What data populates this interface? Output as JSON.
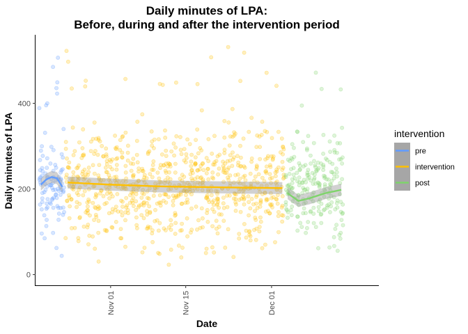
{
  "chart_data": {
    "type": "scatter",
    "title_lines": [
      "Daily minutes of LPA:",
      "Before, during and after the intervention period"
    ],
    "xlabel": "Date",
    "ylabel": "Daily minutes of LPA",
    "xlim": [
      "2019-10-18",
      "2019-12-21"
    ],
    "ylim": [
      -25,
      560
    ],
    "x_ticks": [
      {
        "date": "2019-11-01",
        "label": "Nov 01"
      },
      {
        "date": "2019-11-15",
        "label": "Nov 15"
      },
      {
        "date": "2019-12-01",
        "label": "Dec 01"
      }
    ],
    "y_ticks": [
      0,
      200,
      400
    ],
    "grid": false,
    "legend": {
      "title": "intervention",
      "placement": "right",
      "entries": [
        "pre",
        "intervention",
        "post"
      ]
    },
    "series": [
      {
        "name": "pre",
        "color": "#619CFF",
        "date_range": [
          "2019-10-19",
          "2019-10-23"
        ],
        "point_spread": [
          10,
          520
        ],
        "typical_range": [
          100,
          330
        ],
        "smooth": [
          {
            "x": "2019-10-19",
            "y": 210
          },
          {
            "x": "2019-10-20",
            "y": 222
          },
          {
            "x": "2019-10-21",
            "y": 228
          },
          {
            "x": "2019-10-22",
            "y": 225
          },
          {
            "x": "2019-10-23",
            "y": 205
          }
        ]
      },
      {
        "name": "intervention",
        "color": "#FFC000",
        "date_range": [
          "2019-10-24",
          "2019-12-03"
        ],
        "point_spread": [
          10,
          545
        ],
        "typical_range": [
          80,
          340
        ],
        "smooth": [
          {
            "x": "2019-10-24",
            "y": 215
          },
          {
            "x": "2019-11-01",
            "y": 210
          },
          {
            "x": "2019-11-10",
            "y": 206
          },
          {
            "x": "2019-11-20",
            "y": 204
          },
          {
            "x": "2019-12-03",
            "y": 202
          }
        ]
      },
      {
        "name": "post",
        "color": "#7FD46B",
        "date_range": [
          "2019-12-04",
          "2019-12-14"
        ],
        "point_spread": [
          30,
          520
        ],
        "typical_range": [
          80,
          330
        ],
        "smooth": [
          {
            "x": "2019-12-04",
            "y": 190
          },
          {
            "x": "2019-12-06",
            "y": 172
          },
          {
            "x": "2019-12-08",
            "y": 178
          },
          {
            "x": "2019-12-11",
            "y": 190
          },
          {
            "x": "2019-12-14",
            "y": 198
          }
        ]
      }
    ]
  }
}
